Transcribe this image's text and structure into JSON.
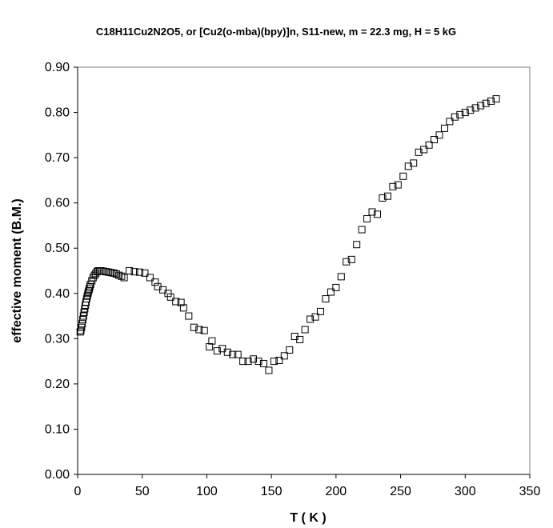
{
  "chart_data": {
    "type": "scatter",
    "title": "C18H11Cu2N2O5, or [Cu2(o-mba)(bpy)]n,  S11-new,  m = 22.3 mg, H = 5 kG",
    "xlabel": "T ( K )",
    "ylabel": "effective moment (B.M.)",
    "xlim": [
      0,
      350
    ],
    "ylim": [
      0.0,
      0.9
    ],
    "x_ticks": [
      "0",
      "50",
      "100",
      "150",
      "200",
      "250",
      "300",
      "350"
    ],
    "x_tick_values": [
      0,
      50,
      100,
      150,
      200,
      250,
      300,
      350
    ],
    "y_ticks": [
      "0.00",
      "0.10",
      "0.20",
      "0.30",
      "0.40",
      "0.50",
      "0.60",
      "0.70",
      "0.80",
      "0.90"
    ],
    "y_tick_values": [
      0.0,
      0.1,
      0.2,
      0.3,
      0.4,
      0.5,
      0.6,
      0.7,
      0.8,
      0.9
    ],
    "grid": false,
    "legend": "none",
    "marker": "open-square",
    "colors": {
      "marker_stroke": "#000000",
      "axis": "#000000",
      "background": "#ffffff"
    },
    "series": [
      {
        "x": [
          2,
          2.5,
          3,
          3.5,
          4,
          4.5,
          5,
          5.5,
          6,
          6.5,
          7,
          7.5,
          8,
          8.5,
          9,
          9.5,
          10,
          11,
          12,
          13,
          14,
          15,
          16,
          17,
          18,
          20,
          22,
          24,
          26,
          28,
          30,
          32,
          34,
          36,
          40,
          44,
          48,
          52,
          56,
          60,
          62,
          66,
          70,
          72,
          76,
          80,
          82,
          86,
          90,
          94,
          98,
          102,
          104,
          108,
          112,
          116,
          120,
          124,
          128,
          132,
          136,
          140,
          144,
          148,
          152,
          156,
          160,
          164,
          168,
          172,
          176,
          180,
          184,
          188,
          192,
          196,
          200,
          204,
          208,
          212,
          216,
          220,
          224,
          228,
          232,
          236,
          240,
          244,
          248,
          252,
          256,
          260,
          264,
          268,
          272,
          276,
          280,
          284,
          288,
          292,
          296,
          300,
          304,
          308,
          312,
          316,
          320,
          324
        ],
        "y": [
          0.315,
          0.318,
          0.325,
          0.333,
          0.342,
          0.35,
          0.358,
          0.366,
          0.374,
          0.381,
          0.388,
          0.394,
          0.4,
          0.405,
          0.41,
          0.415,
          0.42,
          0.428,
          0.435,
          0.44,
          0.444,
          0.448,
          0.45,
          0.45,
          0.45,
          0.449,
          0.448,
          0.447,
          0.446,
          0.445,
          0.443,
          0.44,
          0.438,
          0.435,
          0.45,
          0.448,
          0.447,
          0.445,
          0.435,
          0.425,
          0.415,
          0.408,
          0.4,
          0.392,
          0.382,
          0.38,
          0.368,
          0.35,
          0.325,
          0.32,
          0.318,
          0.282,
          0.295,
          0.273,
          0.278,
          0.27,
          0.265,
          0.265,
          0.25,
          0.25,
          0.255,
          0.25,
          0.245,
          0.23,
          0.25,
          0.252,
          0.262,
          0.275,
          0.305,
          0.298,
          0.32,
          0.343,
          0.348,
          0.36,
          0.388,
          0.403,
          0.413,
          0.437,
          0.47,
          0.475,
          0.508,
          0.541,
          0.565,
          0.58,
          0.575,
          0.611,
          0.615,
          0.636,
          0.64,
          0.659,
          0.681,
          0.688,
          0.712,
          0.718,
          0.728,
          0.74,
          0.75,
          0.765,
          0.78,
          0.79,
          0.795,
          0.8,
          0.805,
          0.81,
          0.815,
          0.82,
          0.825,
          0.83
        ]
      }
    ]
  }
}
